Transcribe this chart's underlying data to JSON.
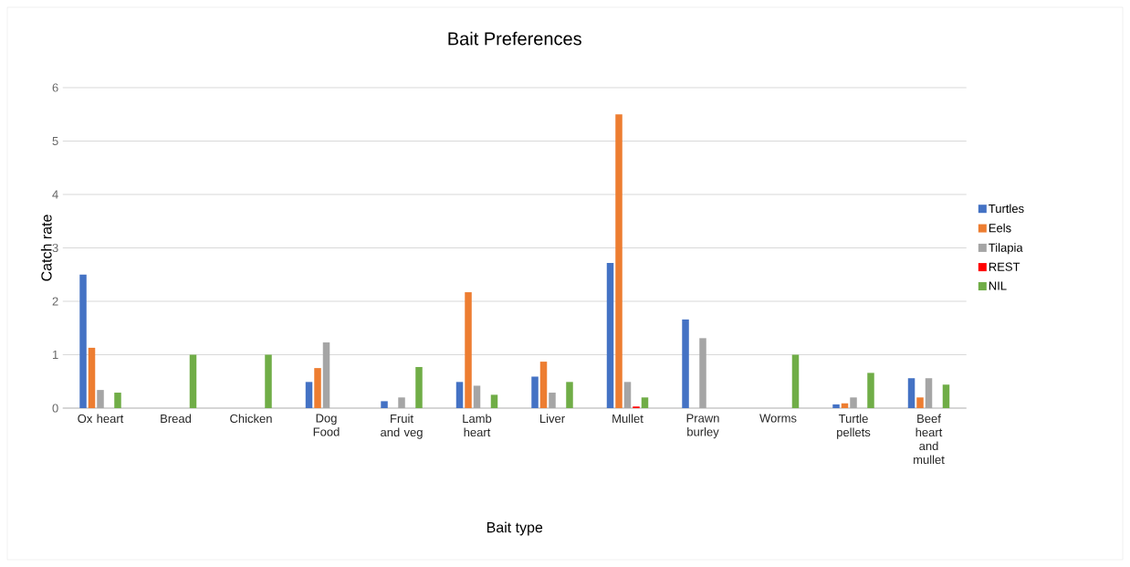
{
  "chart_data": {
    "type": "bar",
    "title": "Bait Preferences",
    "xlabel": "Bait type",
    "ylabel": "Catch rate",
    "categories": [
      "Ox heart",
      "Bread",
      "Chicken",
      "Dog Food",
      "Fruit and veg",
      "Lamb heart",
      "Liver",
      "Mullet",
      "Prawn burley",
      "Worms",
      "Turtle pellets",
      "Beef heart and mullet"
    ],
    "series": [
      {
        "name": "Turtles",
        "color": "#4472c4",
        "values": [
          2.5,
          0,
          0,
          0.49,
          0.13,
          0.49,
          0.59,
          2.72,
          1.66,
          0,
          0.07,
          0.56
        ]
      },
      {
        "name": "Eels",
        "color": "#ed7d31",
        "values": [
          1.13,
          0,
          0,
          0.75,
          0,
          2.17,
          0.87,
          5.5,
          0,
          0,
          0.09,
          0.2
        ]
      },
      {
        "name": "Tilapia",
        "color": "#a5a5a5",
        "values": [
          0.34,
          0,
          0,
          1.23,
          0.2,
          0.42,
          0.29,
          0.49,
          1.31,
          0,
          0.2,
          0.56
        ]
      },
      {
        "name": "REST",
        "color": "#ff0000",
        "values": [
          0,
          0,
          0,
          0,
          0,
          0,
          0,
          0.03,
          0,
          0,
          0,
          0
        ]
      },
      {
        "name": "NIL",
        "color": "#70ad47",
        "values": [
          0.29,
          1.0,
          1.0,
          0,
          0.77,
          0.25,
          0.49,
          0.2,
          0,
          1.0,
          0.66,
          0.44
        ]
      }
    ],
    "ylim": [
      0,
      6
    ],
    "yticks": [
      0,
      1,
      2,
      3,
      4,
      5,
      6
    ],
    "grid": "y",
    "legend": "right"
  }
}
